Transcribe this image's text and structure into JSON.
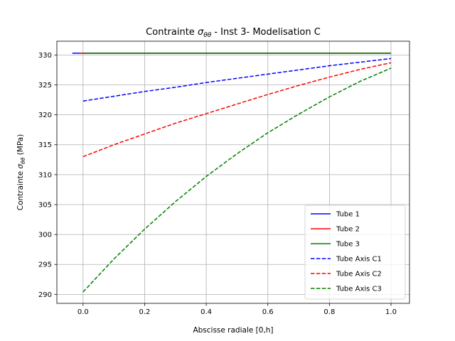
{
  "chart_data": {
    "type": "line",
    "title_parts": {
      "before": "Contrainte ",
      "sigma": "σ",
      "sub": "θθ",
      "after": " - Inst 3- Modelisation C"
    },
    "xlabel": "Abscisse radiale [0,h]",
    "ylabel_parts": {
      "before": "Contrainte ",
      "sigma": "σ",
      "sub": "θθ",
      "after": " (MPa)"
    },
    "xlim": [
      -0.085,
      1.06
    ],
    "ylim": [
      288.5,
      332.3
    ],
    "xticks": [
      0.0,
      0.2,
      0.4,
      0.6,
      0.8,
      1.0
    ],
    "xtick_labels": [
      "0.0",
      "0.2",
      "0.4",
      "0.6",
      "0.8",
      "1.0"
    ],
    "yticks": [
      290,
      295,
      300,
      305,
      310,
      315,
      320,
      325,
      330
    ],
    "ytick_labels": [
      "290",
      "295",
      "300",
      "305",
      "310",
      "315",
      "320",
      "325",
      "330"
    ],
    "grid": true,
    "legend_position": "lower-right",
    "series": [
      {
        "name": "Tube 1",
        "color": "#0000ff",
        "dash": "solid",
        "x": [
          -0.035,
          1.0
        ],
        "y": [
          330.3,
          330.3
        ]
      },
      {
        "name": "Tube 2",
        "color": "#ff0000",
        "dash": "solid",
        "x": [
          -0.01,
          1.0
        ],
        "y": [
          330.3,
          330.3
        ]
      },
      {
        "name": "Tube 3",
        "color": "#008000",
        "dash": "solid",
        "x": [
          0.0,
          1.0
        ],
        "y": [
          330.3,
          330.3
        ]
      },
      {
        "name": "Tube Axis C1",
        "color": "#0000ff",
        "dash": "dashed",
        "x": [
          0.0,
          0.1,
          0.2,
          0.3,
          0.4,
          0.5,
          0.6,
          0.7,
          0.8,
          0.9,
          1.0
        ],
        "y": [
          322.3,
          323.1,
          323.9,
          324.6,
          325.4,
          326.1,
          326.8,
          327.5,
          328.2,
          328.8,
          329.4
        ]
      },
      {
        "name": "Tube Axis C2",
        "color": "#ff0000",
        "dash": "dashed",
        "x": [
          0.0,
          0.1,
          0.2,
          0.3,
          0.4,
          0.5,
          0.6,
          0.7,
          0.8,
          0.9,
          1.0
        ],
        "y": [
          313.0,
          315.0,
          316.8,
          318.6,
          320.2,
          321.8,
          323.4,
          324.9,
          326.3,
          327.6,
          328.7
        ]
      },
      {
        "name": "Tube Axis C3",
        "color": "#008000",
        "dash": "dashed",
        "x": [
          0.0,
          0.1,
          0.2,
          0.3,
          0.4,
          0.5,
          0.6,
          0.7,
          0.8,
          0.9,
          1.0
        ],
        "y": [
          290.4,
          295.9,
          300.9,
          305.5,
          309.7,
          313.5,
          317.0,
          320.1,
          323.0,
          325.6,
          327.8
        ]
      }
    ]
  }
}
